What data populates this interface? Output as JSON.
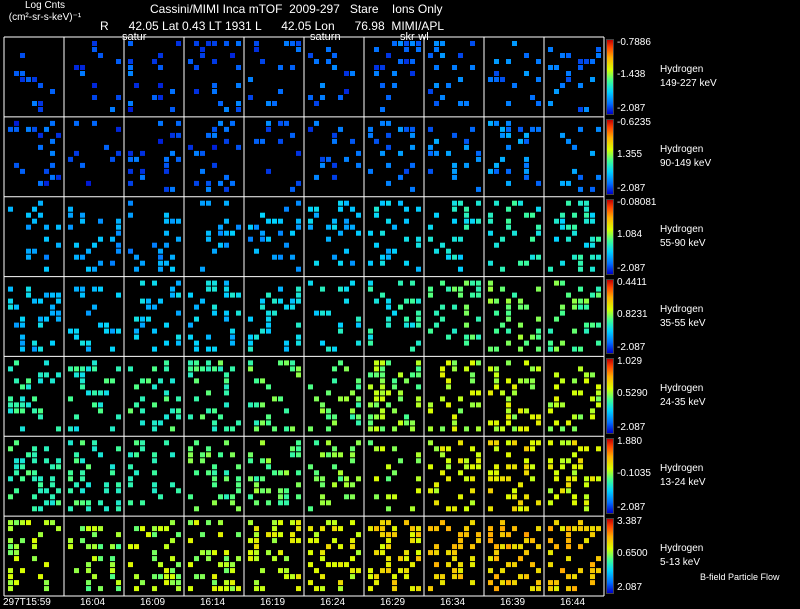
{
  "header": {
    "title": "Cassini/MIMI Inca mTOF  2009-297   Stare    Ions Only",
    "subtitle": "R      42.05 Lat 0.43 LT 1931 L      42.05 Lon      76.98  MIMI/APL",
    "log_counts_line1": "Log Cnts",
    "log_counts_line2": "(cm²-sr-s-keV)⁻¹"
  },
  "overlay_labels": [
    "satur",
    "saturn",
    "skr-wl"
  ],
  "footer": {
    "note": "B-field Particle Flow"
  },
  "chart_data": {
    "type": "heatmap",
    "columns": [
      "297T15:59",
      "16:04",
      "16:09",
      "16:14",
      "16:19",
      "16:24",
      "16:29",
      "16:34",
      "16:39",
      "16:44"
    ],
    "rows": [
      {
        "species": "Hydrogen",
        "energy": "149-227 keV",
        "cmax": "-0.7886",
        "cmid": "-1.438",
        "cmin": "-2.087",
        "level": [
          0.1,
          0.1,
          0.1,
          0.11,
          0.11,
          0.12,
          0.13,
          0.15,
          0.15,
          0.15
        ]
      },
      {
        "species": "Hydrogen",
        "energy": "90-149 keV",
        "cmax": "-0.6235",
        "cmid": "1.355",
        "cmin": "-2.087",
        "level": [
          0.1,
          0.1,
          0.11,
          0.11,
          0.12,
          0.13,
          0.15,
          0.17,
          0.18,
          0.18
        ]
      },
      {
        "species": "Hydrogen",
        "energy": "55-90 keV",
        "cmax": "-0.08081",
        "cmid": "1.084",
        "cmin": "-2.087",
        "level": [
          0.22,
          0.22,
          0.22,
          0.23,
          0.24,
          0.26,
          0.3,
          0.35,
          0.38,
          0.36
        ]
      },
      {
        "species": "Hydrogen",
        "energy": "35-55 keV",
        "cmax": "0.4411",
        "cmid": "0.8231",
        "cmin": "-2.087",
        "level": [
          0.28,
          0.28,
          0.28,
          0.3,
          0.32,
          0.34,
          0.38,
          0.44,
          0.48,
          0.46
        ]
      },
      {
        "species": "Hydrogen",
        "energy": "24-35 keV",
        "cmax": "1.029",
        "cmid": "0.5290",
        "cmin": "-2.087",
        "level": [
          0.4,
          0.4,
          0.42,
          0.44,
          0.46,
          0.48,
          0.52,
          0.56,
          0.58,
          0.56
        ]
      },
      {
        "species": "Hydrogen",
        "energy": "13-24 keV",
        "cmax": "1.880",
        "cmid": "-0.1035",
        "cmin": "-2.087",
        "level": [
          0.42,
          0.42,
          0.44,
          0.46,
          0.48,
          0.5,
          0.54,
          0.6,
          0.64,
          0.62
        ]
      },
      {
        "species": "Hydrogen",
        "energy": "5-13 keV",
        "cmax": "3.387",
        "cmid": "0.6500",
        "cmin": "2.087",
        "level": [
          0.55,
          0.52,
          0.55,
          0.56,
          0.6,
          0.62,
          0.66,
          0.7,
          0.72,
          0.7
        ]
      }
    ]
  }
}
